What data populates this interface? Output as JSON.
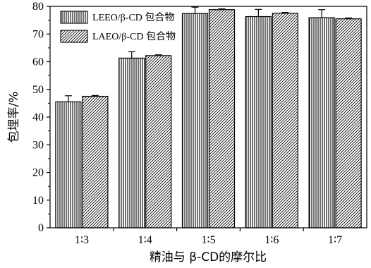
{
  "chart_data": {
    "type": "bar",
    "categories": [
      "1∶3",
      "1∶4",
      "1∶5",
      "1∶6",
      "1∶7"
    ],
    "series": [
      {
        "name": "LEEO/β-CD 包合物",
        "values": [
          45.5,
          61.3,
          77.4,
          76.3,
          75.9
        ],
        "errors": [
          2.2,
          2.3,
          2.3,
          2.6,
          2.9
        ],
        "pattern": "vertical-stripes"
      },
      {
        "name": "LAEO/β-CD 包合物",
        "values": [
          47.5,
          62.2,
          78.8,
          77.5,
          75.5
        ],
        "errors": [
          0.3,
          0.3,
          0.3,
          0.3,
          0.3
        ],
        "pattern": "diagonal-hatch"
      }
    ],
    "xlabel": "精油与 β-CD的摩尔比",
    "ylabel": "包埋率/%",
    "ylim": [
      0,
      80
    ],
    "yticks": [
      0,
      10,
      20,
      30,
      40,
      50,
      60,
      70,
      80
    ],
    "grid": false,
    "legend_position": "top-left",
    "colors": {
      "stroke": "#000000",
      "fill": "#ffffff"
    }
  }
}
